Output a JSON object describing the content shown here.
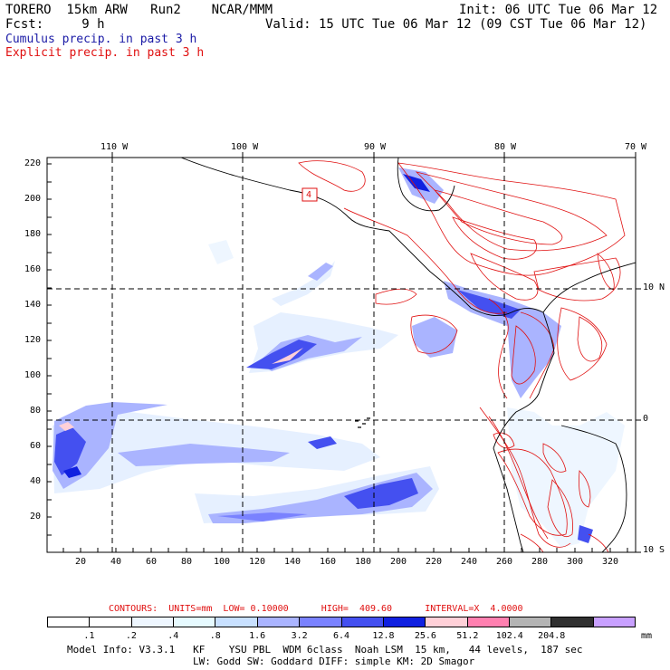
{
  "header": {
    "line1_left": "TORERO  15km ARW   Run2    NCAR/MMM",
    "line1_right": "Init: 06 UTC Tue 06 Mar 12",
    "line2_left": "Fcst:     9 h",
    "line2_right": "Valid: 15 UTC Tue 06 Mar 12 (09 CST Tue 06 Mar 12)",
    "field1": "Cumulus precip. in past 3 h",
    "field2": "Explicit precip. in past 3 h"
  },
  "top_lon_labels": [
    "110 W",
    "100 W",
    "90 W",
    "80 W",
    "70 W"
  ],
  "right_lat_labels": [
    "10 N",
    "0",
    "10 S"
  ],
  "y_ticks": [
    "220",
    "200",
    "180",
    "160",
    "140",
    "120",
    "100",
    "80",
    "60",
    "40",
    "20"
  ],
  "x_ticks": [
    "20",
    "40",
    "60",
    "80",
    "100",
    "120",
    "140",
    "160",
    "180",
    "200",
    "220",
    "240",
    "260",
    "280",
    "300",
    "320"
  ],
  "box_label": "4",
  "contour_info": "CONTOURS:  UNITS=mm  LOW= 0.10000      HIGH=  409.60      INTERVAL=X  4.0000",
  "colorbar": {
    "labels": [
      ".1",
      ".2",
      ".4",
      ".8",
      "1.6",
      "3.2",
      "6.4",
      "12.8",
      "25.6",
      "51.2",
      "102.4",
      "204.8"
    ],
    "unit": "mm",
    "colors": [
      "#ffffff",
      "#ffffff",
      "#eef6ff",
      "#e6faff",
      "#c8e0ff",
      "#aab4ff",
      "#7a82ff",
      "#4450f0",
      "#1020e0",
      "#ffd0d8",
      "#ff80b0",
      "#b4b4b4",
      "#303030",
      "#c8a0ff"
    ]
  },
  "footer": {
    "line1": "Model Info: V3.3.1   KF    YSU PBL  WDM 6class  Noah LSM  15 km,   44 levels,  187 sec",
    "line2": "LW: Godd SW: Goddard DIFF: simple KM: 2D Smagor"
  }
}
